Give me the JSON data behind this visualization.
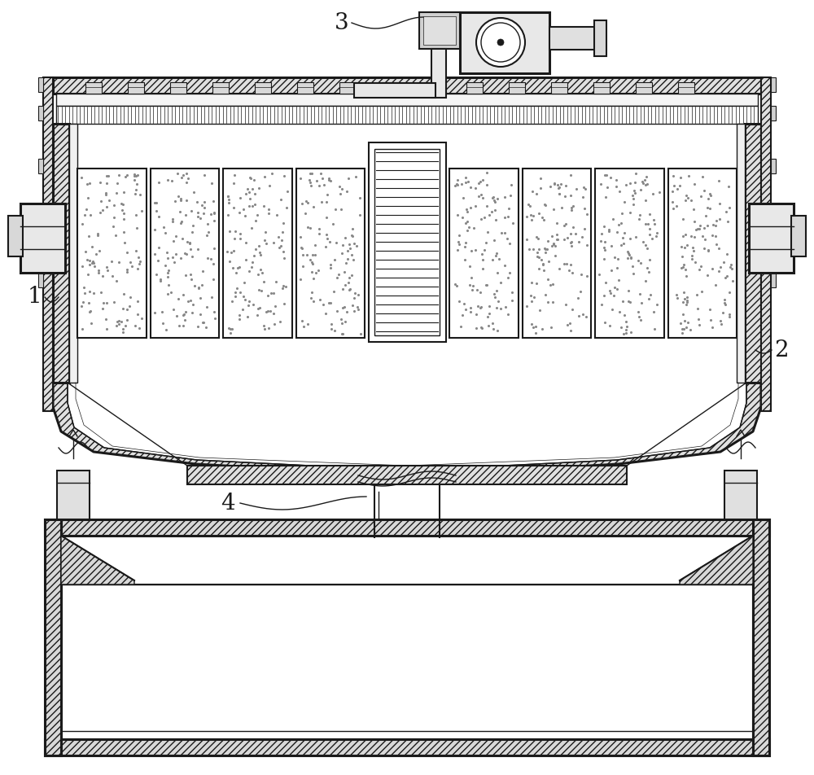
{
  "bg_color": "#ffffff",
  "line_color": "#1a1a1a",
  "figsize": [
    10.0,
    9.52
  ],
  "dpi": 100
}
